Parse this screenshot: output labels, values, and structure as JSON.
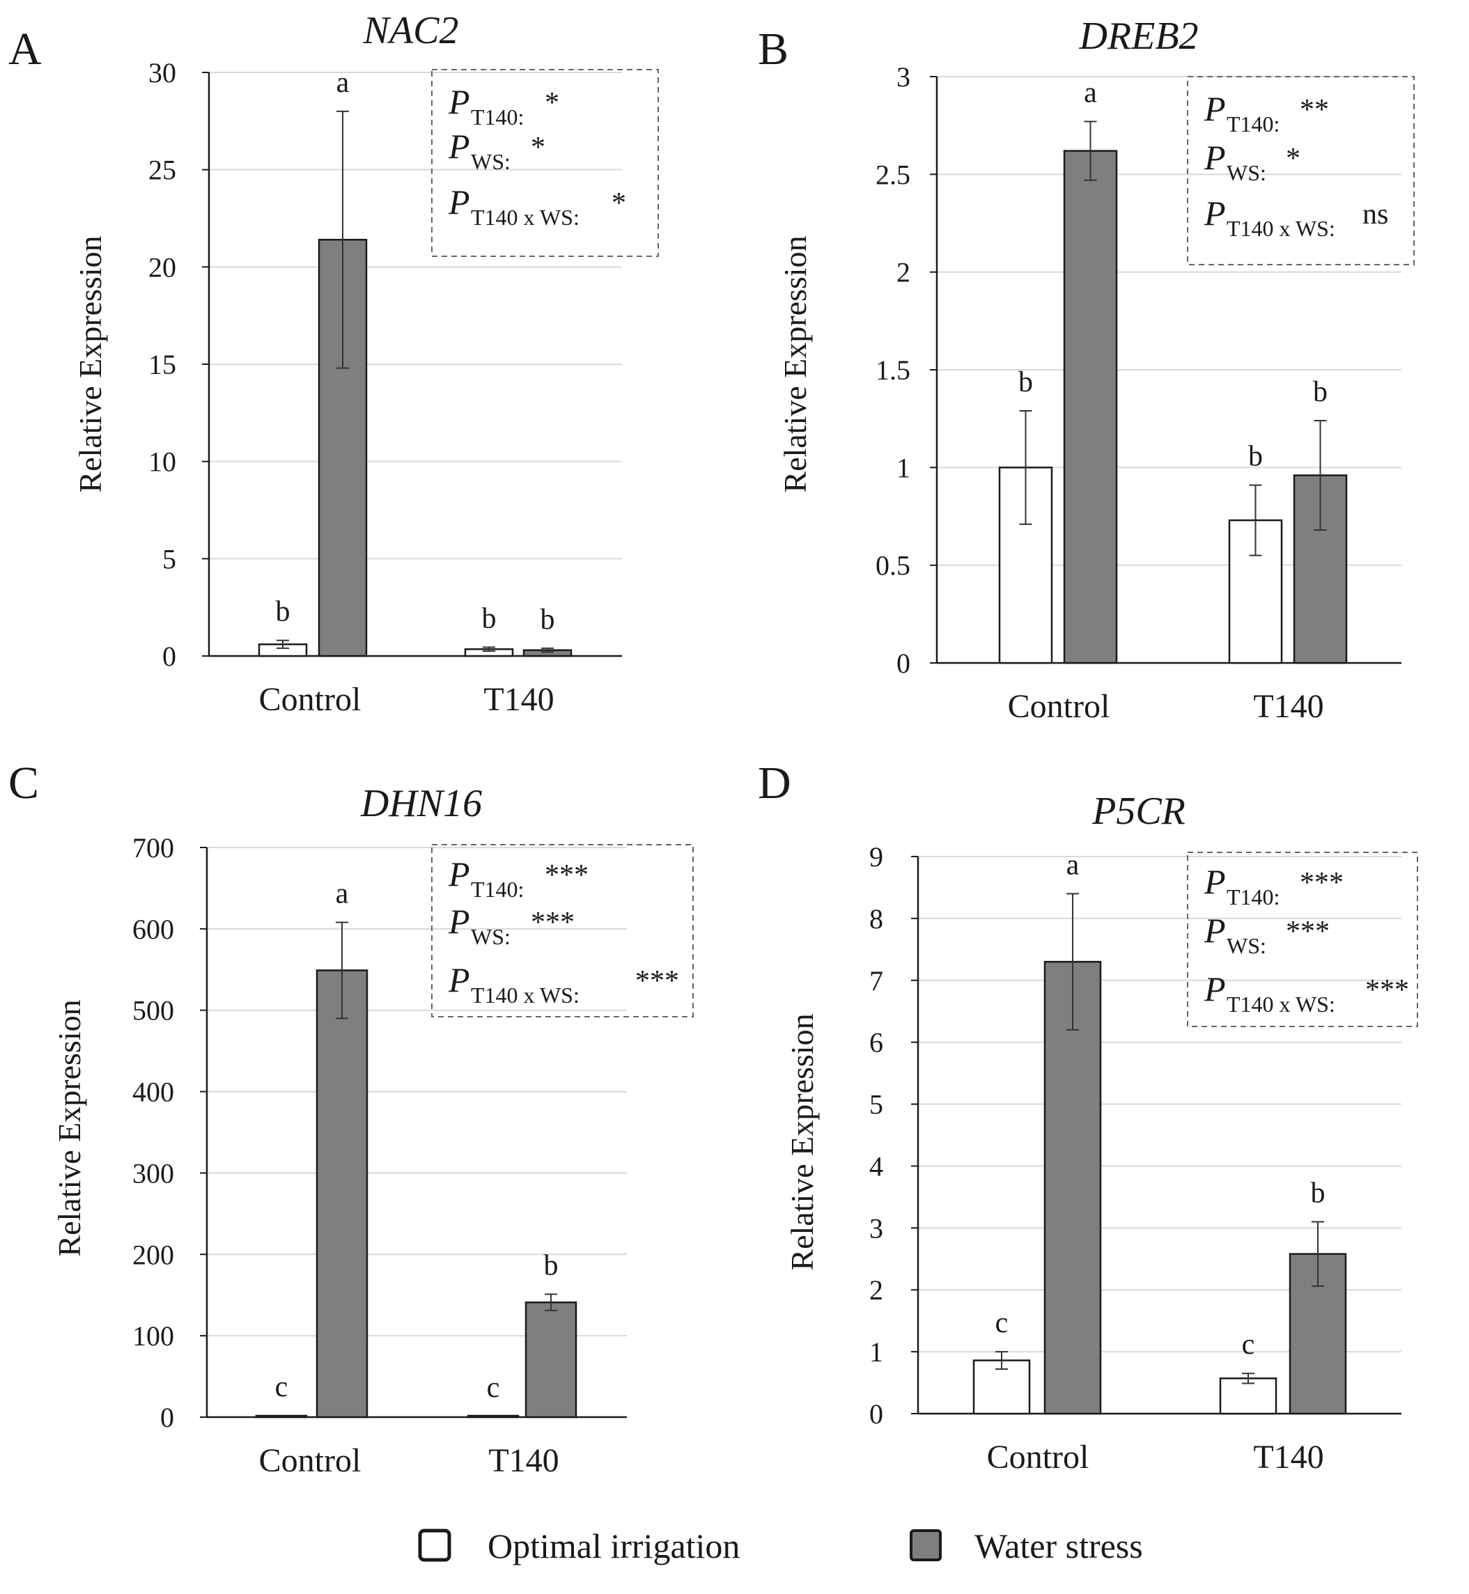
{
  "legend": {
    "items": [
      {
        "label": "Optimal irrigation",
        "color": "#ffffff"
      },
      {
        "label": "Water stress",
        "color": "#7f7f7f"
      }
    ]
  },
  "chart_data": [
    {
      "panel": "A",
      "type": "bar",
      "title": "NAC2",
      "ylabel": "Relative Expression",
      "ylim": [
        0,
        30
      ],
      "ticks": [
        "0",
        "5",
        "10",
        "15",
        "20",
        "25",
        "30"
      ],
      "categories": [
        "Control",
        "T140"
      ],
      "series": [
        {
          "name": "Optimal irrigation",
          "color": "#ffffff",
          "values": [
            0.6,
            0.35
          ],
          "errors": [
            0.2,
            0.1
          ],
          "letters": [
            "b",
            "b"
          ]
        },
        {
          "name": "Water stress",
          "color": "#7f7f7f",
          "values": [
            21.4,
            0.3
          ],
          "errors": [
            6.6,
            0.1
          ],
          "letters": [
            "a",
            "b"
          ]
        }
      ],
      "stats": [
        {
          "sub": "T140:",
          "sig": "*"
        },
        {
          "sub": "WS:",
          "sig": "*"
        },
        {
          "sub": "T140 x WS:",
          "sig": "*"
        }
      ]
    },
    {
      "panel": "B",
      "type": "bar",
      "title": "DREB2",
      "ylabel": "Relative Expression",
      "ylim": [
        0,
        3
      ],
      "ticks": [
        "0",
        "0.5",
        "1",
        "1.5",
        "2",
        "2.5",
        "3"
      ],
      "categories": [
        "Control",
        "T140"
      ],
      "series": [
        {
          "name": "Optimal irrigation",
          "color": "#ffffff",
          "values": [
            1.0,
            0.73
          ],
          "errors": [
            0.29,
            0.18
          ],
          "letters": [
            "b",
            "b"
          ]
        },
        {
          "name": "Water stress",
          "color": "#7f7f7f",
          "values": [
            2.62,
            0.96
          ],
          "errors": [
            0.15,
            0.28
          ],
          "letters": [
            "a",
            "b"
          ]
        }
      ],
      "stats": [
        {
          "sub": "T140:",
          "sig": "**"
        },
        {
          "sub": "WS:",
          "sig": "*"
        },
        {
          "sub": "T140 x WS:",
          "sig": "ns"
        }
      ]
    },
    {
      "panel": "C",
      "type": "bar",
      "title": "DHN16",
      "ylabel": "Relative Expression",
      "ylim": [
        0,
        700
      ],
      "ticks": [
        "0",
        "100",
        "200",
        "300",
        "400",
        "500",
        "600",
        "700"
      ],
      "categories": [
        "Control",
        "T140"
      ],
      "series": [
        {
          "name": "Optimal irrigation",
          "color": "#ffffff",
          "values": [
            1.5,
            1.0
          ],
          "errors": [
            0,
            0
          ],
          "letters": [
            "c",
            "c"
          ]
        },
        {
          "name": "Water stress",
          "color": "#7f7f7f",
          "values": [
            549,
            141
          ],
          "errors": [
            59,
            10
          ],
          "letters": [
            "a",
            "b"
          ]
        }
      ],
      "stats": [
        {
          "sub": "T140:",
          "sig": "***"
        },
        {
          "sub": "WS:",
          "sig": "***"
        },
        {
          "sub": "T140 x WS:",
          "sig": "***"
        }
      ]
    },
    {
      "panel": "D",
      "type": "bar",
      "title": "P5CR",
      "ylabel": "Relative Expression",
      "ylim": [
        0,
        9
      ],
      "ticks": [
        "0",
        "1",
        "2",
        "3",
        "4",
        "5",
        "6",
        "7",
        "8",
        "9"
      ],
      "categories": [
        "Control",
        "T140"
      ],
      "series": [
        {
          "name": "Optimal irrigation",
          "color": "#ffffff",
          "values": [
            0.86,
            0.57
          ],
          "errors": [
            0.14,
            0.08
          ],
          "letters": [
            "c",
            "c"
          ]
        },
        {
          "name": "Water stress",
          "color": "#7f7f7f",
          "values": [
            7.3,
            2.58
          ],
          "errors": [
            1.1,
            0.52
          ],
          "letters": [
            "a",
            "b"
          ]
        }
      ],
      "stats": [
        {
          "sub": "T140:",
          "sig": "***"
        },
        {
          "sub": "WS:",
          "sig": "***"
        },
        {
          "sub": "T140 x WS:",
          "sig": "***"
        }
      ]
    }
  ]
}
